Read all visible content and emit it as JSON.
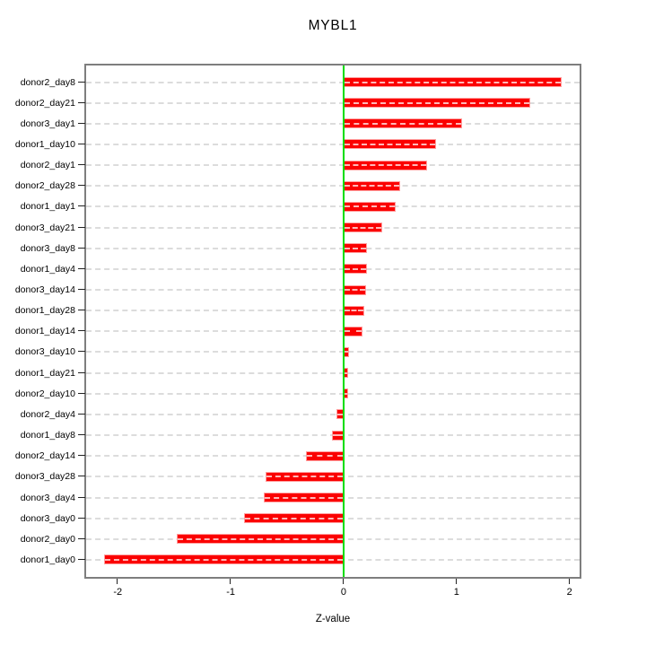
{
  "chart_data": {
    "type": "bar",
    "orientation": "horizontal",
    "title": "MYBL1",
    "xlabel": "Z-value",
    "ylabel": "",
    "categories": [
      "donor2_day8",
      "donor2_day21",
      "donor3_day1",
      "donor1_day10",
      "donor2_day1",
      "donor2_day28",
      "donor1_day1",
      "donor3_day21",
      "donor3_day8",
      "donor1_day4",
      "donor3_day14",
      "donor1_day28",
      "donor1_day14",
      "donor3_day10",
      "donor1_day21",
      "donor2_day10",
      "donor2_day4",
      "donor1_day8",
      "donor2_day14",
      "donor3_day28",
      "donor3_day4",
      "donor3_day0",
      "donor2_day0",
      "donor1_day0"
    ],
    "values": [
      1.93,
      1.65,
      1.05,
      0.82,
      0.74,
      0.5,
      0.46,
      0.34,
      0.21,
      0.21,
      0.2,
      0.18,
      0.17,
      0.05,
      0.04,
      0.04,
      -0.06,
      -0.1,
      -0.33,
      -0.69,
      -0.71,
      -0.88,
      -1.48,
      -2.12
    ],
    "xlim": [
      -2.28,
      2.09
    ],
    "xticks": [
      "-2",
      "-1",
      "0",
      "1",
      "2"
    ],
    "xtick_values": [
      -2,
      -1,
      0,
      1,
      2
    ],
    "grid": "horizontal-dashed",
    "zero_reference_line": 0,
    "colors": {
      "bar_fill": "#fb0000",
      "bar_edge": "#ff9d9d",
      "zero_line": "#00dd00",
      "gridline": "#dcdcdc",
      "plot_border": "#7e7e7e",
      "text": "#000000"
    }
  }
}
